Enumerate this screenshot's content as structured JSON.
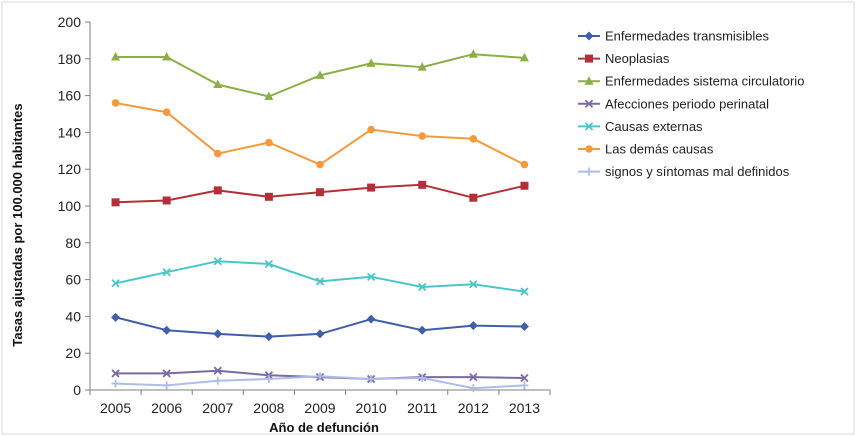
{
  "chart_data": {
    "type": "line",
    "xlabel": "Año de defunción",
    "ylabel": "Tasas ajustadas por 100.000 habitantes",
    "ylim": [
      0,
      200
    ],
    "yticks": [
      0,
      20,
      40,
      60,
      80,
      100,
      120,
      140,
      160,
      180,
      200
    ],
    "x": [
      "2005",
      "2006",
      "2007",
      "2008",
      "2009",
      "2010",
      "2011",
      "2012",
      "2013"
    ],
    "grid": false,
    "legend_position": "right",
    "series": [
      {
        "name": "Enfermedades transmisibles",
        "color": "#3f5fa8",
        "marker": "diamond",
        "values": [
          39.5,
          32.5,
          30.5,
          29,
          30.5,
          38.5,
          32.5,
          35,
          34.5
        ]
      },
      {
        "name": "Neoplasias",
        "color": "#b3303a",
        "marker": "square",
        "values": [
          102,
          103,
          108.5,
          105,
          107.5,
          110,
          111.5,
          104.5,
          111
        ]
      },
      {
        "name": "Enfermedades sistema circulatorio",
        "color": "#8cae46",
        "marker": "triangle",
        "values": [
          181,
          181,
          166,
          159.5,
          171,
          177.5,
          175.5,
          182.5,
          180.5
        ]
      },
      {
        "name": "Afecciones periodo perinatal",
        "color": "#7a6aa6",
        "marker": "x",
        "values": [
          9,
          9,
          10.5,
          8,
          7,
          6,
          7,
          7,
          6.5
        ]
      },
      {
        "name": "Causas externas",
        "color": "#4cc5c9",
        "marker": "x",
        "values": [
          58,
          64,
          70,
          68.5,
          59,
          61.5,
          56,
          57.5,
          53.5
        ]
      },
      {
        "name": "Las demás causas",
        "color": "#f39a3c",
        "marker": "circle",
        "values": [
          156,
          151,
          128.5,
          134.5,
          122.5,
          141.5,
          138,
          136.5,
          122.5
        ]
      },
      {
        "name": "signos y síntomas mal definidos",
        "color": "#aebde6",
        "marker": "plus",
        "values": [
          3.5,
          2.5,
          5,
          6,
          7.5,
          6,
          6.5,
          1,
          2.5
        ]
      }
    ]
  }
}
